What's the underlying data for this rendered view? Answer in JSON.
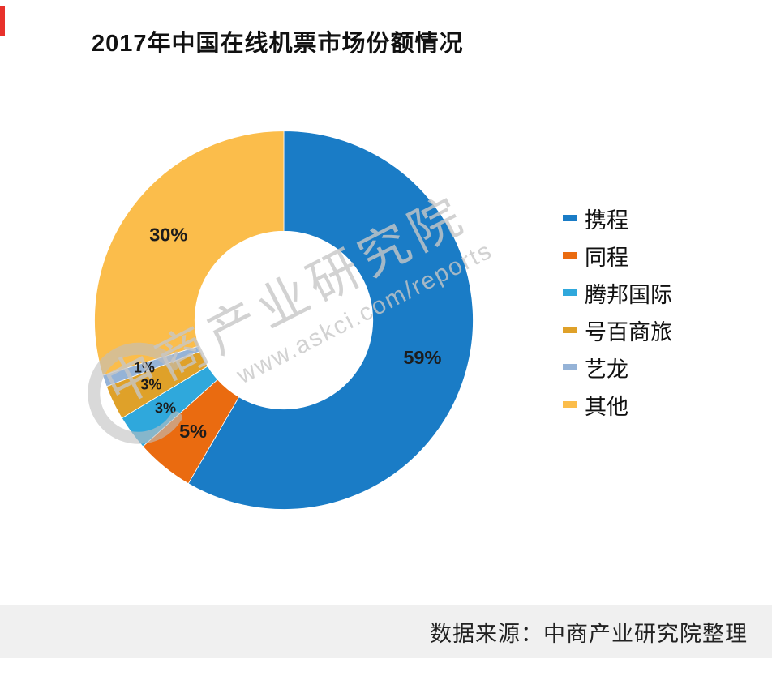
{
  "page": {
    "source_note": "数据来源：中商产业研究院整理"
  },
  "watermark": {
    "line1": "中商产业研究院",
    "line2": "www.askci.com/reports",
    "color": "#c7c7c7"
  },
  "chart_data": {
    "type": "pie",
    "subtype": "donut",
    "title": "2017年中国在线机票市场份额情况",
    "inner_radius_ratio": 0.47,
    "start_angle_deg": 0,
    "direction": "clockwise",
    "legend_position": "right",
    "grid": false,
    "series": [
      {
        "name": "携程",
        "value": 59,
        "label": "59%",
        "color": "#1A7CC6"
      },
      {
        "name": "同程",
        "value": 5,
        "label": "5%",
        "color": "#EA6B10"
      },
      {
        "name": "腾邦国际",
        "value": 3,
        "label": "3%",
        "color": "#2FA8DC"
      },
      {
        "name": "号百商旅",
        "value": 3,
        "label": "3%",
        "color": "#DFA129"
      },
      {
        "name": "艺龙",
        "value": 1,
        "label": "1%",
        "color": "#95B3D7"
      },
      {
        "name": "其他",
        "value": 30,
        "label": "30%",
        "color": "#FBBD4B"
      }
    ]
  }
}
